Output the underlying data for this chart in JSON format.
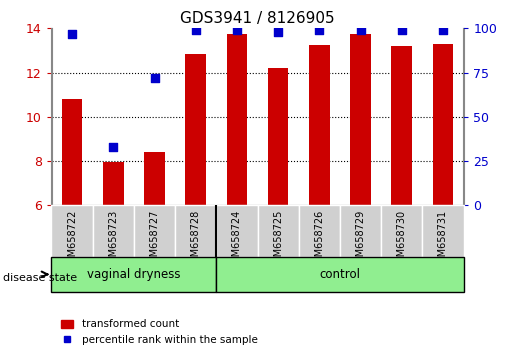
{
  "title": "GDS3941 / 8126905",
  "samples": [
    "GSM658722",
    "GSM658723",
    "GSM658727",
    "GSM658728",
    "GSM658724",
    "GSM658725",
    "GSM658726",
    "GSM658729",
    "GSM658730",
    "GSM658731"
  ],
  "transformed_count": [
    10.8,
    7.95,
    8.4,
    12.85,
    13.75,
    12.2,
    13.25,
    13.75,
    13.2,
    13.3
  ],
  "percentile_rank": [
    97,
    33,
    72,
    99,
    99,
    98,
    99,
    99,
    99,
    99
  ],
  "groups": [
    {
      "label": "vaginal dryness",
      "start": 0,
      "end": 4,
      "color": "#90EE90"
    },
    {
      "label": "control",
      "start": 4,
      "end": 10,
      "color": "#90EE90"
    }
  ],
  "group_divider": 4,
  "ylim_left": [
    6,
    14
  ],
  "ylim_right": [
    0,
    100
  ],
  "yticks_left": [
    6,
    8,
    10,
    12,
    14
  ],
  "yticks_right": [
    0,
    25,
    50,
    75,
    100
  ],
  "bar_color": "#CC0000",
  "dot_color": "#0000CC",
  "bar_bottom": 6,
  "background_color": "#ffffff",
  "grid_color": "#000000",
  "xlabel_color_left": "#CC0000",
  "xlabel_color_right": "#0000CC",
  "disease_state_label": "disease state",
  "legend_bar_label": "transformed count",
  "legend_dot_label": "percentile rank within the sample",
  "tick_area_bg": "#d0d0d0",
  "figsize": [
    5.15,
    3.54
  ],
  "dpi": 100
}
